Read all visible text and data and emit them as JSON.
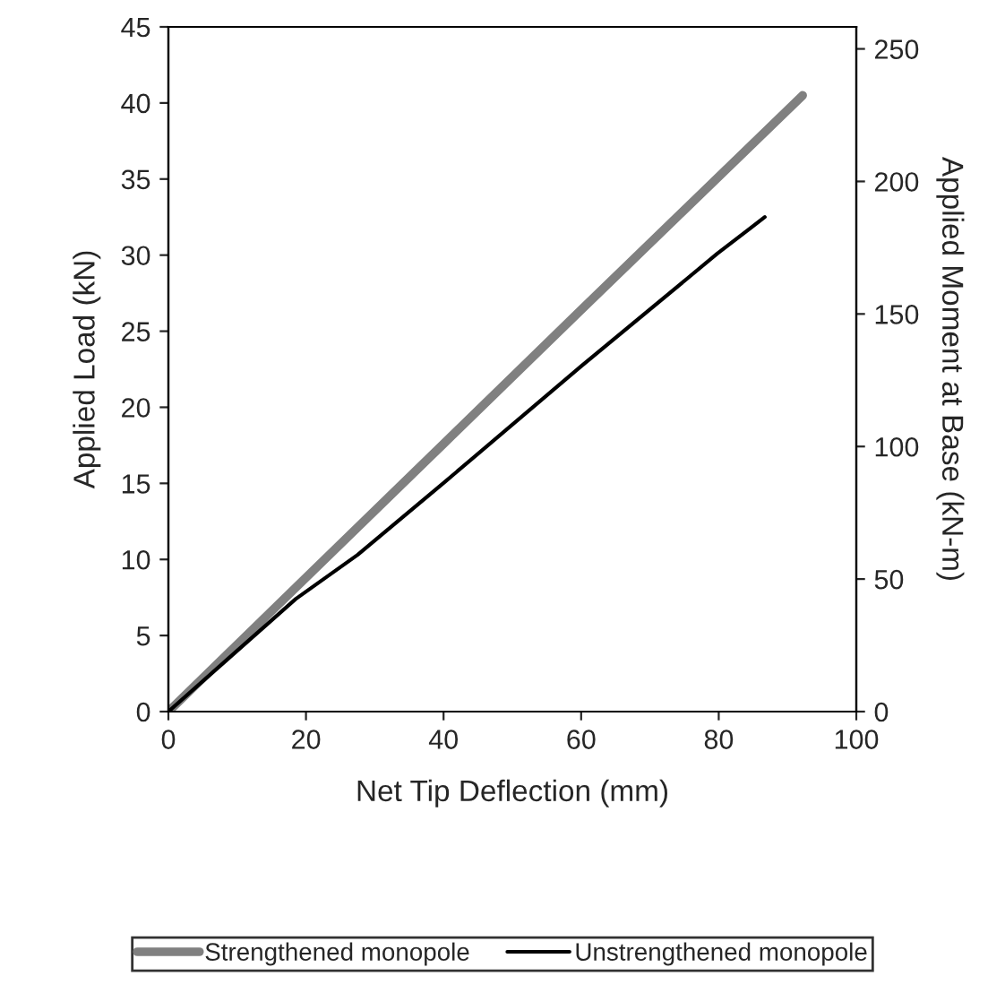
{
  "chart_data": {
    "type": "line",
    "xlabel": "Net Tip Deflection (mm)",
    "ylabel": "Applied Load (kN)",
    "y2label": "Applied Moment at Base (kN-m)",
    "series": [
      {
        "name": "Strengthened monopole",
        "color": "#808080",
        "x": [
          0,
          20,
          40,
          60,
          92.2
        ],
        "values": [
          0,
          8.8,
          17.6,
          26.4,
          40.5
        ]
      },
      {
        "name": "Unstrengthened monopole",
        "color": "#000000",
        "x": [
          0,
          18.5,
          27.5,
          40.2,
          60,
          79.8,
          86.7
        ],
        "values": [
          0,
          7.4,
          10.3,
          15.1,
          22.7,
          30.1,
          32.5
        ]
      }
    ],
    "xlim": [
      0,
      100
    ],
    "xticks": [
      0,
      20,
      40,
      60,
      80,
      100
    ],
    "ylim": [
      0,
      45
    ],
    "yticks": [
      0,
      5,
      10,
      15,
      20,
      25,
      30,
      35,
      40,
      45
    ],
    "y2lim": [
      0,
      258.3
    ],
    "y2ticks": [
      0,
      50,
      100,
      150,
      200,
      250
    ],
    "grid": false,
    "legend": "bottom"
  }
}
